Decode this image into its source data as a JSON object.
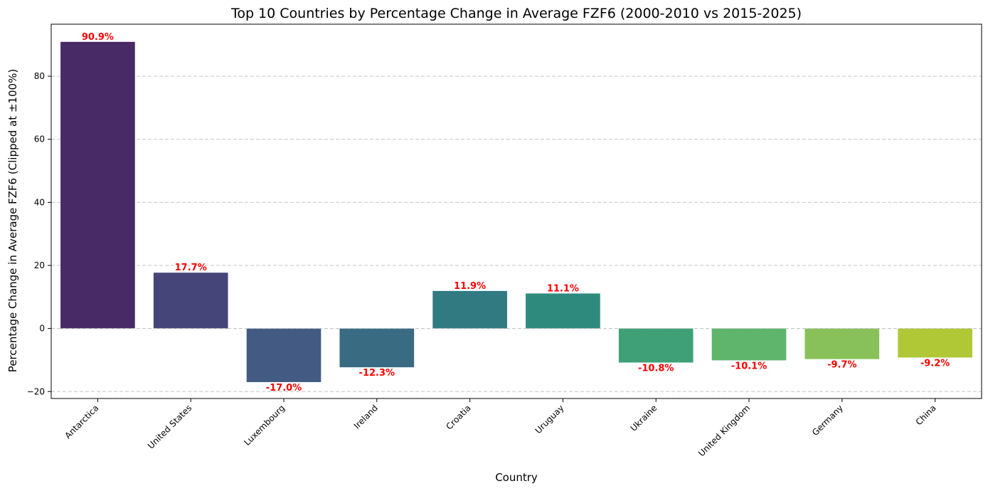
{
  "chart_data": {
    "type": "bar",
    "title": "Top 10 Countries by Percentage Change in Average FZF6 (2000-2010 vs 2015-2025)",
    "xlabel": "Country",
    "ylabel": "Percentage Change in Average FZF6 (Clipped at ±100%)",
    "categories": [
      "Antarctica",
      "United States",
      "Luxembourg",
      "Ireland",
      "Croatia",
      "Uruguay",
      "Ukraine",
      "United Kingdom",
      "Germany",
      "China"
    ],
    "values": [
      90.9,
      17.7,
      -17.0,
      -12.3,
      11.9,
      11.1,
      -10.8,
      -10.1,
      -9.7,
      -9.2
    ],
    "data_labels": [
      "90.9%",
      "17.7%",
      "-17.0%",
      "-12.3%",
      "11.9%",
      "11.1%",
      "-10.8%",
      "-10.1%",
      "-9.7%",
      "-9.2%"
    ],
    "colors": [
      "#482a66",
      "#46457a",
      "#435b82",
      "#396b82",
      "#317a82",
      "#2f8a7e",
      "#3fa077",
      "#5eb56b",
      "#88c15a",
      "#b0c835"
    ],
    "label_color": "#ff0000",
    "ylim": [
      -22.2,
      96.5
    ],
    "yticks": [
      -20,
      0,
      20,
      40,
      60,
      80
    ],
    "ytick_labels": [
      "−20",
      "0",
      "20",
      "40",
      "60",
      "80"
    ],
    "grid": "y-dashed"
  }
}
